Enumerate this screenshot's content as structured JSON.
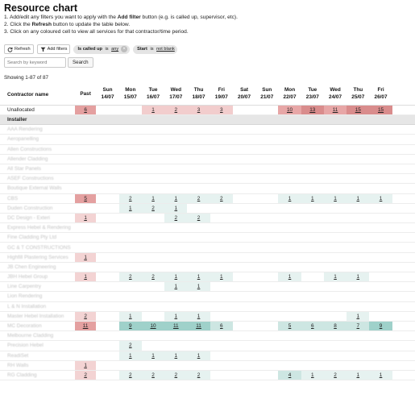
{
  "page": {
    "title": "Resource chart",
    "instructions": [
      {
        "pre": "1. Add/edit any filters you want to apply with the ",
        "bold": "Add filter",
        "post": " button (e.g. is called up, supervisor, etc)."
      },
      {
        "pre": "2. Click the ",
        "bold": "Refresh",
        "post": " button to update the table below."
      },
      {
        "pre": "3. Click on any coloured cell to view all services for that contractor/time period.",
        "bold": "",
        "post": ""
      }
    ]
  },
  "toolbar": {
    "refresh_label": "Refresh",
    "add_filters_label": "Add filters",
    "filters": [
      {
        "field": "Is called up",
        "op": "is",
        "value": "any"
      },
      {
        "field": "Start",
        "op": "is",
        "value": "not blank"
      }
    ]
  },
  "search": {
    "placeholder": "Search by keyword",
    "button_label": "Search"
  },
  "showing_text": "Showing 1-87 of 87",
  "columns": {
    "name_header": "Contractor name",
    "past_header": "Past",
    "days": [
      {
        "dow": "Sun",
        "date": "14/07"
      },
      {
        "dow": "Mon",
        "date": "15/07"
      },
      {
        "dow": "Tue",
        "date": "16/07"
      },
      {
        "dow": "Wed",
        "date": "17/07"
      },
      {
        "dow": "Thu",
        "date": "18/07"
      },
      {
        "dow": "Fri",
        "date": "19/07"
      },
      {
        "dow": "Sat",
        "date": "20/07"
      },
      {
        "dow": "Sun",
        "date": "21/07"
      },
      {
        "dow": "Mon",
        "date": "22/07"
      },
      {
        "dow": "Tue",
        "date": "23/07"
      },
      {
        "dow": "Wed",
        "date": "24/07"
      },
      {
        "dow": "Thu",
        "date": "25/07"
      },
      {
        "dow": "Fri",
        "date": "26/07"
      },
      {
        "dow": "",
        "date": ""
      }
    ]
  },
  "colors": {
    "past_light": "#f3d3d3",
    "past_mid": "#e4a0a0",
    "past_dark": "#d98888",
    "green_light": "#e6f2f0",
    "green_mid": "#cde6e2",
    "green_dark": "#9fd1ca",
    "red_light": "#f2cdcd",
    "red_mid": "#e7a6a6",
    "red_dark": "#d98c8c"
  },
  "rows": [
    {
      "name": "Unallocated",
      "blur": false,
      "past": "6",
      "days": [
        "",
        "",
        "1",
        "2",
        "3",
        "3",
        "",
        "",
        "10",
        "13",
        "11",
        "15",
        "15",
        ""
      ]
    },
    {
      "section": "Installer"
    },
    {
      "name": "AAA Rendering",
      "blur": true,
      "past": "",
      "days": [
        "",
        "",
        "",
        "",
        "",
        "",
        "",
        "",
        "",
        "",
        "",
        "",
        "",
        ""
      ]
    },
    {
      "name": "Aeropanelling",
      "blur": true,
      "past": "",
      "days": [
        "",
        "",
        "",
        "",
        "",
        "",
        "",
        "",
        "",
        "",
        "",
        "",
        "",
        ""
      ]
    },
    {
      "name": "Allen Constructions",
      "blur": true,
      "past": "",
      "days": [
        "",
        "",
        "",
        "",
        "",
        "",
        "",
        "",
        "",
        "",
        "",
        "",
        "",
        ""
      ]
    },
    {
      "name": "Allender Cladding",
      "blur": true,
      "past": "",
      "days": [
        "",
        "",
        "",
        "",
        "",
        "",
        "",
        "",
        "",
        "",
        "",
        "",
        "",
        ""
      ]
    },
    {
      "name": "All Star Panels",
      "blur": true,
      "past": "",
      "days": [
        "",
        "",
        "",
        "",
        "",
        "",
        "",
        "",
        "",
        "",
        "",
        "",
        "",
        ""
      ]
    },
    {
      "name": "ASEF Constructions",
      "blur": true,
      "past": "",
      "days": [
        "",
        "",
        "",
        "",
        "",
        "",
        "",
        "",
        "",
        "",
        "",
        "",
        "",
        ""
      ]
    },
    {
      "name": "Boutique External Walls",
      "blur": true,
      "past": "",
      "days": [
        "",
        "",
        "",
        "",
        "",
        "",
        "",
        "",
        "",
        "",
        "",
        "",
        "",
        ""
      ]
    },
    {
      "name": "CBS",
      "blur": true,
      "past": "5",
      "days": [
        "",
        "2",
        "1",
        "1",
        "2",
        "2",
        "",
        "",
        "1",
        "1",
        "1",
        "1",
        "1",
        ""
      ]
    },
    {
      "name": "Duden Construction",
      "blur": true,
      "past": "",
      "days": [
        "",
        "1",
        "2",
        "1",
        "",
        "",
        "",
        "",
        "",
        "",
        "",
        "",
        "",
        ""
      ]
    },
    {
      "name": "DC Design - Exteri",
      "blur": true,
      "past": "1",
      "days": [
        "",
        "",
        "",
        "2",
        "2",
        "",
        "",
        "",
        "",
        "",
        "",
        "",
        "",
        ""
      ]
    },
    {
      "name": "Express Hebel & Rendering",
      "blur": true,
      "past": "",
      "days": [
        "",
        "",
        "",
        "",
        "",
        "",
        "",
        "",
        "",
        "",
        "",
        "",
        "",
        ""
      ]
    },
    {
      "name": "Fine Cladding Pty Ltd",
      "blur": true,
      "past": "",
      "days": [
        "",
        "",
        "",
        "",
        "",
        "",
        "",
        "",
        "",
        "",
        "",
        "",
        "",
        ""
      ]
    },
    {
      "name": "GC & T CONSTRUCTIONS",
      "blur": true,
      "past": "",
      "days": [
        "",
        "",
        "",
        "",
        "",
        "",
        "",
        "",
        "",
        "",
        "",
        "",
        "",
        ""
      ]
    },
    {
      "name": "Highfill Plastering Services",
      "blur": true,
      "past": "1",
      "days": [
        "",
        "",
        "",
        "",
        "",
        "",
        "",
        "",
        "",
        "",
        "",
        "",
        "",
        ""
      ]
    },
    {
      "name": "JB Chen Engineering",
      "blur": true,
      "past": "",
      "days": [
        "",
        "",
        "",
        "",
        "",
        "",
        "",
        "",
        "",
        "",
        "",
        "",
        "",
        ""
      ]
    },
    {
      "name": "JBH Hebel Group",
      "blur": true,
      "past": "1",
      "days": [
        "",
        "2",
        "2",
        "1",
        "1",
        "1",
        "",
        "",
        "1",
        "",
        "1",
        "1",
        "",
        ""
      ]
    },
    {
      "name": "Line Carpentry",
      "blur": true,
      "past": "",
      "days": [
        "",
        "",
        "",
        "1",
        "1",
        "",
        "",
        "",
        "",
        "",
        "",
        "",
        "",
        ""
      ]
    },
    {
      "name": "Lion Rendering",
      "blur": true,
      "past": "",
      "days": [
        "",
        "",
        "",
        "",
        "",
        "",
        "",
        "",
        "",
        "",
        "",
        "",
        "",
        ""
      ]
    },
    {
      "name": "L & N Installation",
      "blur": true,
      "past": "",
      "days": [
        "",
        "",
        "",
        "",
        "",
        "",
        "",
        "",
        "",
        "",
        "",
        "",
        "",
        ""
      ]
    },
    {
      "name": "Master Hebel Installation",
      "blur": true,
      "past": "2",
      "days": [
        "",
        "1",
        "",
        "1",
        "1",
        "",
        "",
        "",
        "",
        "",
        "",
        "1",
        "",
        ""
      ]
    },
    {
      "name": "MC Decoration",
      "blur": true,
      "past": "11",
      "days": [
        "",
        "9",
        "10",
        "11",
        "11",
        "6",
        "",
        "",
        "5",
        "6",
        "8",
        "7",
        "9",
        ""
      ]
    },
    {
      "name": "Melbourne Cladding",
      "blur": true,
      "past": "",
      "days": [
        "",
        "",
        "",
        "",
        "",
        "",
        "",
        "",
        "",
        "",
        "",
        "",
        "",
        ""
      ]
    },
    {
      "name": "Precision Hebel",
      "blur": true,
      "past": "",
      "days": [
        "",
        "2",
        "",
        "",
        "",
        "",
        "",
        "",
        "",
        "",
        "",
        "",
        "",
        ""
      ]
    },
    {
      "name": "ReadiSet",
      "blur": true,
      "past": "",
      "days": [
        "",
        "1",
        "1",
        "1",
        "1",
        "",
        "",
        "",
        "",
        "",
        "",
        "",
        "",
        ""
      ]
    },
    {
      "name": "RH Walls",
      "blur": true,
      "past": "1",
      "days": [
        "",
        "",
        "",
        "",
        "",
        "",
        "",
        "",
        "",
        "",
        "",
        "",
        "",
        ""
      ]
    },
    {
      "name": "RG Cladding",
      "blur": true,
      "past": "2",
      "days": [
        "",
        "2",
        "2",
        "2",
        "2",
        "",
        "",
        "",
        "4",
        "1",
        "2",
        "1",
        "1",
        ""
      ]
    }
  ]
}
